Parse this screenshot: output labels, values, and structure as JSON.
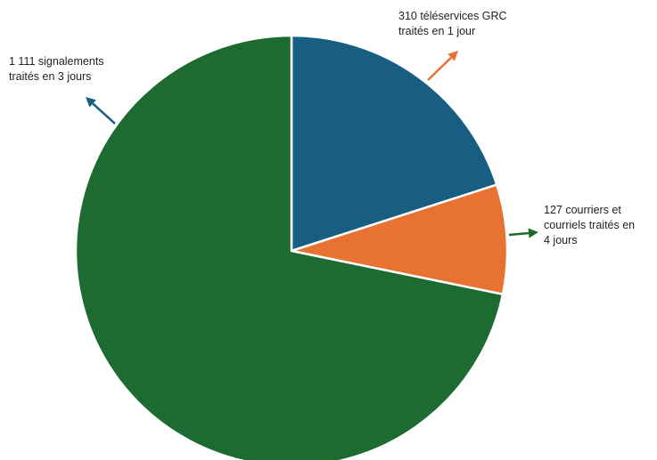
{
  "chart_data": {
    "type": "pie",
    "title": "",
    "categories": [
      "téléservices GRC traités en 1 jour",
      "courriers et courriels traités en 4 jours",
      "signalements traités en 3 jours"
    ],
    "values": [
      310,
      127,
      1111
    ],
    "colors": [
      "#175e82",
      "#e87232",
      "#1d6b31"
    ],
    "start_angle_deg": 0,
    "direction": "clockwise",
    "labels": [
      {
        "lines": [
          "310 téléservices GRC",
          "traités en 1 jour"
        ],
        "arrow_color": "#e87232"
      },
      {
        "lines": [
          "127 courriers et",
          "courriels traités en",
          "4 jours"
        ],
        "arrow_color": "#1d6b31"
      },
      {
        "lines": [
          "1 111 signalements",
          "traités en 3 jours"
        ],
        "arrow_color": "#175e82"
      }
    ]
  }
}
